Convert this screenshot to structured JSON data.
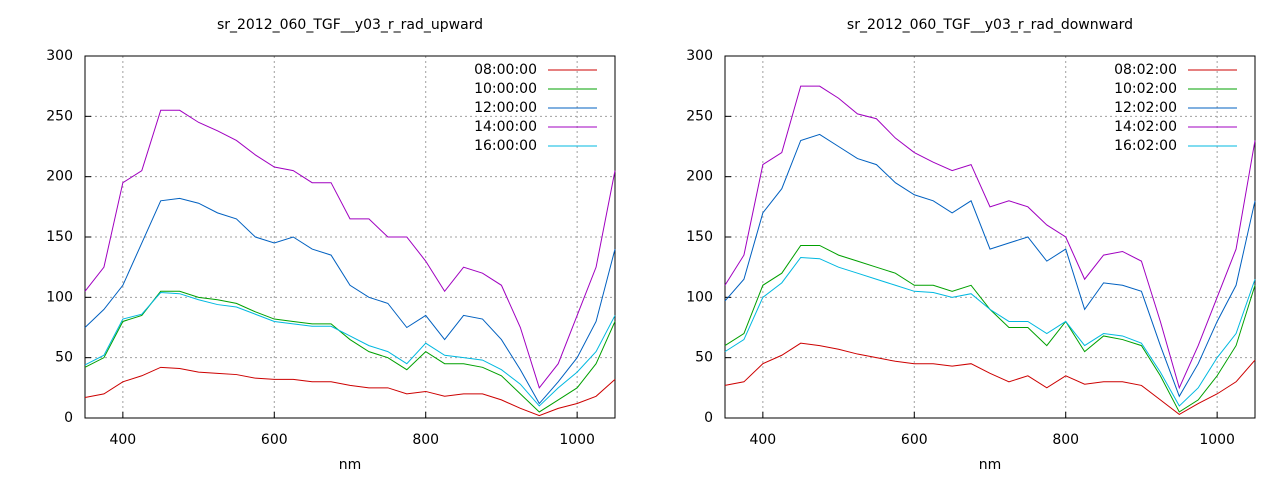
{
  "chart_data": [
    {
      "type": "line",
      "title": "sr_2012_060_TGF__y03_r_rad_upward",
      "x_label": "nm",
      "x": [
        350,
        375,
        400,
        425,
        450,
        475,
        500,
        525,
        550,
        575,
        600,
        625,
        650,
        675,
        700,
        725,
        750,
        775,
        800,
        825,
        850,
        875,
        900,
        925,
        950,
        975,
        1000,
        1025,
        1050
      ],
      "xlim": [
        350,
        1050
      ],
      "xticks": [
        400,
        600,
        800,
        1000
      ],
      "ylim": [
        0,
        300
      ],
      "yticks": [
        0,
        50,
        100,
        150,
        200,
        250,
        300
      ],
      "grid": true,
      "legend": "upper right",
      "series": [
        {
          "name": "08:00:00",
          "color": "#cc0000",
          "values": [
            17,
            20,
            30,
            35,
            42,
            41,
            38,
            37,
            36,
            33,
            32,
            32,
            30,
            30,
            27,
            25,
            25,
            20,
            22,
            18,
            20,
            20,
            15,
            8,
            2,
            8,
            12,
            18,
            32
          ]
        },
        {
          "name": "10:00:00",
          "color": "#00a000",
          "values": [
            42,
            50,
            80,
            85,
            105,
            105,
            100,
            98,
            95,
            88,
            82,
            80,
            78,
            78,
            65,
            55,
            50,
            40,
            55,
            45,
            45,
            42,
            35,
            20,
            5,
            15,
            25,
            45,
            80
          ]
        },
        {
          "name": "12:00:00",
          "color": "#0060c0",
          "values": [
            75,
            90,
            110,
            145,
            180,
            182,
            178,
            170,
            165,
            150,
            145,
            150,
            140,
            135,
            110,
            100,
            95,
            75,
            85,
            65,
            85,
            82,
            65,
            40,
            12,
            30,
            50,
            80,
            140
          ]
        },
        {
          "name": "14:00:00",
          "color": "#a000c0",
          "values": [
            105,
            125,
            195,
            205,
            255,
            255,
            245,
            238,
            230,
            218,
            208,
            205,
            195,
            195,
            165,
            165,
            150,
            150,
            130,
            105,
            125,
            120,
            110,
            75,
            25,
            45,
            85,
            125,
            205
          ]
        },
        {
          "name": "16:00:00",
          "color": "#00b8e0",
          "values": [
            44,
            52,
            82,
            86,
            104,
            103,
            98,
            94,
            92,
            86,
            80,
            78,
            76,
            76,
            68,
            60,
            55,
            45,
            62,
            52,
            50,
            48,
            40,
            28,
            10,
            25,
            38,
            55,
            85
          ]
        }
      ]
    },
    {
      "type": "line",
      "title": "sr_2012_060_TGF__y03_r_rad_downward",
      "x_label": "nm",
      "x": [
        350,
        375,
        400,
        425,
        450,
        475,
        500,
        525,
        550,
        575,
        600,
        625,
        650,
        675,
        700,
        725,
        750,
        775,
        800,
        825,
        850,
        875,
        900,
        925,
        950,
        975,
        1000,
        1025,
        1050
      ],
      "xlim": [
        350,
        1050
      ],
      "xticks": [
        400,
        600,
        800,
        1000
      ],
      "ylim": [
        0,
        300
      ],
      "yticks": [
        0,
        50,
        100,
        150,
        200,
        250,
        300
      ],
      "grid": true,
      "legend": "upper right",
      "series": [
        {
          "name": "08:02:00",
          "color": "#cc0000",
          "values": [
            27,
            30,
            45,
            52,
            62,
            60,
            57,
            53,
            50,
            47,
            45,
            45,
            43,
            45,
            37,
            30,
            35,
            25,
            35,
            28,
            30,
            30,
            27,
            15,
            3,
            12,
            20,
            30,
            48
          ]
        },
        {
          "name": "10:02:00",
          "color": "#00a000",
          "values": [
            60,
            70,
            110,
            120,
            143,
            143,
            135,
            130,
            125,
            120,
            110,
            110,
            105,
            110,
            90,
            75,
            75,
            60,
            80,
            55,
            68,
            65,
            60,
            35,
            5,
            15,
            35,
            60,
            110
          ]
        },
        {
          "name": "12:02:00",
          "color": "#0060c0",
          "values": [
            97,
            115,
            170,
            190,
            230,
            235,
            225,
            215,
            210,
            195,
            185,
            180,
            170,
            180,
            140,
            145,
            150,
            130,
            140,
            90,
            112,
            110,
            105,
            60,
            18,
            45,
            80,
            110,
            180
          ]
        },
        {
          "name": "14:02:00",
          "color": "#a000c0",
          "values": [
            110,
            135,
            210,
            220,
            275,
            275,
            265,
            252,
            248,
            232,
            220,
            212,
            205,
            210,
            175,
            180,
            175,
            160,
            150,
            115,
            135,
            138,
            130,
            80,
            25,
            60,
            100,
            140,
            230
          ]
        },
        {
          "name": "16:02:00",
          "color": "#00b8e0",
          "values": [
            55,
            65,
            100,
            112,
            133,
            132,
            125,
            120,
            115,
            110,
            105,
            104,
            100,
            103,
            90,
            80,
            80,
            70,
            80,
            60,
            70,
            68,
            62,
            38,
            10,
            25,
            50,
            70,
            115
          ]
        }
      ]
    }
  ]
}
